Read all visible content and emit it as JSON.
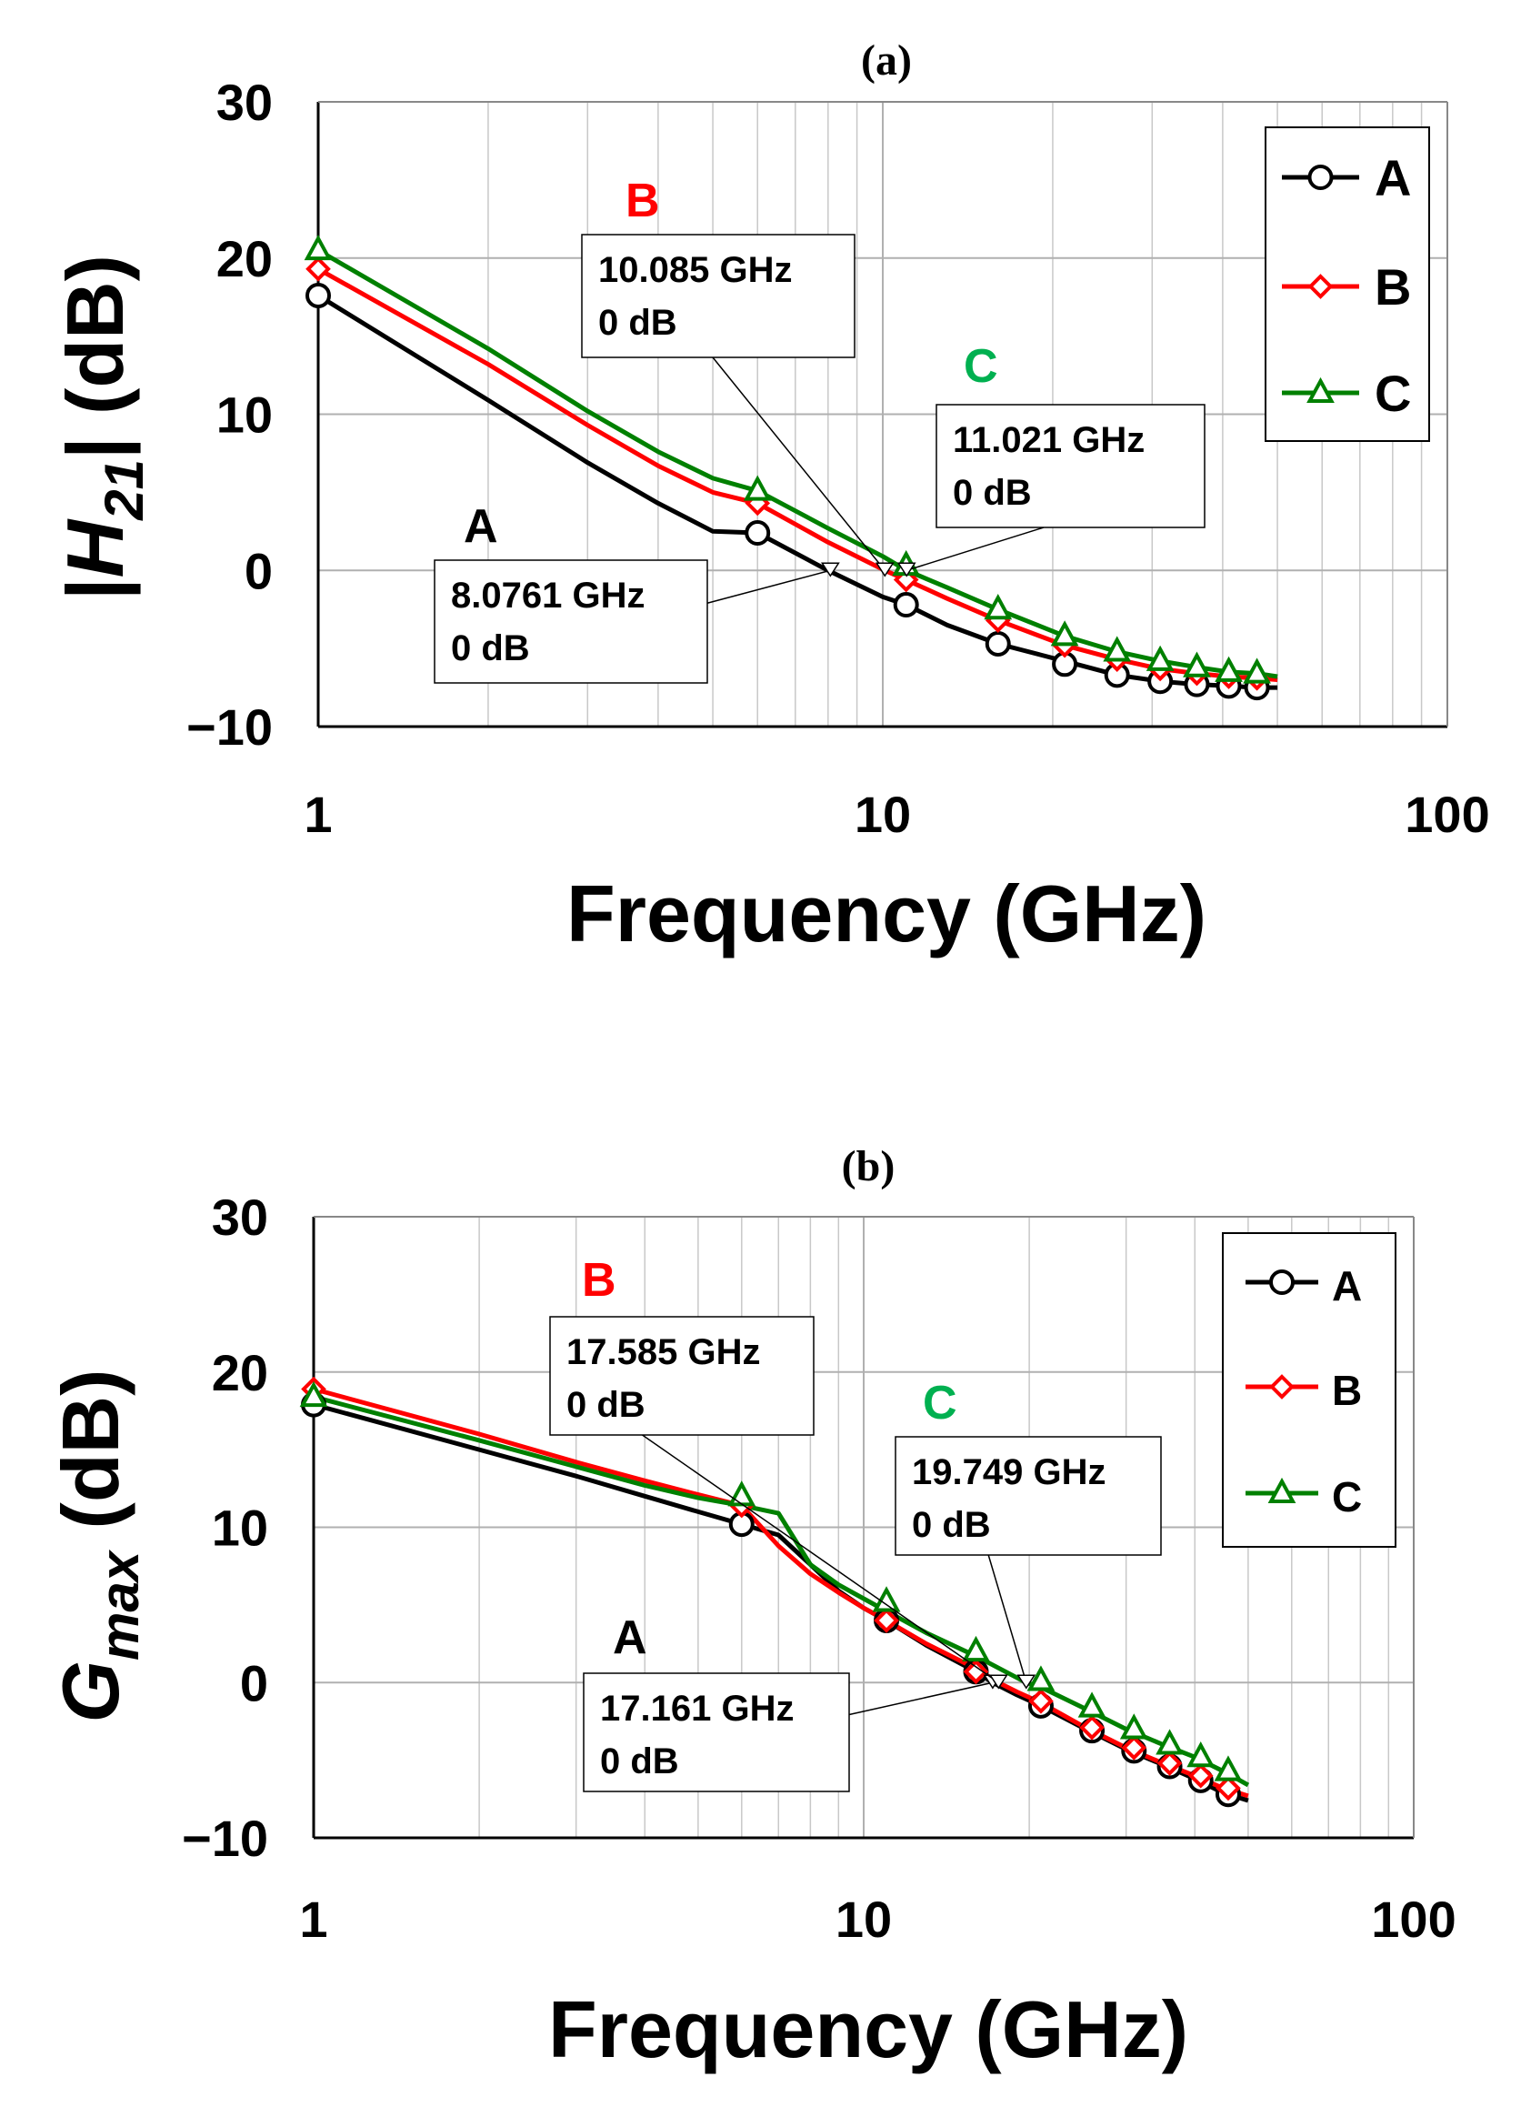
{
  "chart_data": [
    {
      "type": "line",
      "panel_title": "(a)",
      "xlabel": "Frequency (GHz)",
      "ylabel": {
        "prefix": "|",
        "var": "H",
        "sub": "21",
        "suffix": "| (dB)"
      },
      "xscale": "log",
      "xlim": [
        1,
        100
      ],
      "ylim": [
        -10,
        30
      ],
      "xticks": [
        1,
        10,
        100
      ],
      "xtick_labels": [
        "1",
        "10",
        "100"
      ],
      "yticks": [
        -10,
        0,
        10,
        20,
        30
      ],
      "ytick_labels": [
        "−10",
        "0",
        "10",
        "20",
        "30"
      ],
      "grid": true,
      "legend_position": "top-right",
      "series": [
        {
          "name": "A",
          "color": "#000000",
          "marker": "circle",
          "x": [
            1,
            2,
            3,
            4,
            5,
            6,
            8,
            10,
            11,
            13,
            16,
            19,
            22,
            26,
            31,
            36,
            41,
            46,
            50
          ],
          "y": [
            17.6,
            10.9,
            6.9,
            4.3,
            2.5,
            2.4,
            0.0,
            -1.7,
            -2.2,
            -3.5,
            -4.7,
            -5.4,
            -6.0,
            -6.7,
            -7.1,
            -7.3,
            -7.4,
            -7.5,
            -7.5
          ],
          "marker_x": [
            1,
            6,
            11,
            16,
            21,
            26,
            31,
            36,
            41,
            46
          ],
          "marker_y": [
            17.6,
            2.4,
            -2.2,
            -4.7,
            -6.0,
            -6.7,
            -7.1,
            -7.3,
            -7.4,
            -7.5
          ]
        },
        {
          "name": "B",
          "color": "#ff0000",
          "marker": "diamond",
          "x": [
            1,
            2,
            3,
            4,
            5,
            6,
            8,
            10.085,
            11,
            13,
            16,
            21,
            26,
            31,
            36,
            41,
            46,
            50
          ],
          "y": [
            19.3,
            13.2,
            9.3,
            6.7,
            5.0,
            4.3,
            1.8,
            0.0,
            -0.6,
            -1.8,
            -3.2,
            -4.8,
            -5.7,
            -6.3,
            -6.6,
            -6.8,
            -6.9,
            -7.0
          ],
          "marker_x": [
            1,
            6,
            11,
            16,
            21,
            26,
            31,
            36,
            41,
            46
          ],
          "marker_y": [
            19.3,
            4.3,
            -0.6,
            -3.2,
            -4.8,
            -5.7,
            -6.3,
            -6.6,
            -6.8,
            -6.9
          ]
        },
        {
          "name": "C",
          "color": "#008000",
          "marker": "triangle",
          "x": [
            1,
            2,
            3,
            4,
            5,
            6,
            8,
            10,
            11.021,
            13,
            16,
            21,
            26,
            31,
            36,
            41,
            46,
            50
          ],
          "y": [
            20.5,
            14.2,
            10.2,
            7.6,
            5.9,
            5.1,
            2.7,
            0.9,
            0.0,
            -1.1,
            -2.5,
            -4.2,
            -5.2,
            -5.8,
            -6.2,
            -6.5,
            -6.6,
            -6.8
          ],
          "marker_x": [
            1,
            6,
            11,
            16,
            21,
            26,
            31,
            36,
            41,
            46
          ],
          "marker_y": [
            20.5,
            5.1,
            0.3,
            -2.5,
            -4.2,
            -5.2,
            -5.8,
            -6.2,
            -6.5,
            -6.6
          ]
        }
      ],
      "annotations": [
        {
          "series": "A",
          "color": "#000000",
          "line1": "8.0761 GHz",
          "line2": "0 dB",
          "x": 8.0761,
          "y": 0
        },
        {
          "series": "B",
          "color": "#ff0000",
          "line1": "10.085 GHz",
          "line2": "0 dB",
          "x": 10.085,
          "y": 0
        },
        {
          "series": "C",
          "color": "#00b050",
          "line1": "11.021 GHz",
          "line2": "0 dB",
          "x": 11.021,
          "y": 0
        }
      ]
    },
    {
      "type": "line",
      "panel_title": "(b)",
      "xlabel": "Frequency (GHz)",
      "ylabel": {
        "prefix": "",
        "var": "G",
        "sub": "max",
        "suffix": " (dB)"
      },
      "xscale": "log",
      "xlim": [
        1,
        100
      ],
      "ylim": [
        -10,
        30
      ],
      "xticks": [
        1,
        10,
        100
      ],
      "xtick_labels": [
        "1",
        "10",
        "100"
      ],
      "yticks": [
        -10,
        0,
        10,
        20,
        30
      ],
      "ytick_labels": [
        "−10",
        "0",
        "10",
        "20",
        "30"
      ],
      "grid": true,
      "legend_position": "top-right",
      "series": [
        {
          "name": "A",
          "color": "#000000",
          "marker": "circle",
          "x": [
            1,
            2,
            3,
            4,
            5,
            6,
            7,
            8,
            9,
            10,
            11,
            13,
            16,
            17.161,
            19,
            21,
            25,
            30,
            35,
            40,
            45,
            50
          ],
          "y": [
            17.9,
            15.0,
            13.3,
            12.0,
            11.0,
            10.2,
            9.5,
            7.6,
            5.9,
            4.8,
            4.0,
            2.4,
            0.7,
            0.0,
            -0.8,
            -1.5,
            -2.9,
            -4.3,
            -5.3,
            -6.2,
            -7.1,
            -7.6
          ],
          "marker_x": [
            1,
            6,
            11,
            16,
            21,
            26,
            31,
            36,
            41,
            46
          ],
          "marker_y": [
            17.9,
            10.2,
            4.0,
            0.7,
            -1.5,
            -3.1,
            -4.4,
            -5.4,
            -6.3,
            -7.2
          ]
        },
        {
          "name": "B",
          "color": "#ff0000",
          "marker": "diamond",
          "x": [
            1,
            2,
            3,
            4,
            5,
            6,
            7,
            8,
            9,
            10,
            11,
            13,
            16,
            17.585,
            19,
            21,
            25,
            30,
            35,
            40,
            45,
            50
          ],
          "y": [
            18.9,
            16.0,
            14.2,
            13.0,
            12.1,
            11.4,
            8.8,
            7.0,
            5.8,
            4.8,
            4.0,
            2.5,
            0.9,
            0.0,
            -0.6,
            -1.3,
            -2.8,
            -4.2,
            -5.2,
            -6.0,
            -6.8,
            -7.3
          ],
          "marker_x": [
            1,
            6,
            11,
            16,
            21,
            26,
            31,
            36,
            41,
            46
          ],
          "marker_y": [
            18.9,
            11.4,
            4.0,
            0.7,
            -1.2,
            -2.9,
            -4.2,
            -5.2,
            -6.0,
            -6.8
          ]
        },
        {
          "name": "C",
          "color": "#008000",
          "marker": "triangle",
          "x": [
            1,
            2,
            3,
            4,
            5,
            6,
            7,
            8,
            9,
            10,
            11,
            13,
            16,
            19.749,
            21,
            25,
            30,
            35,
            40,
            45,
            50
          ],
          "y": [
            18.4,
            15.6,
            13.9,
            12.7,
            11.9,
            11.4,
            10.9,
            7.6,
            6.3,
            5.4,
            4.6,
            3.2,
            1.7,
            0.0,
            -0.3,
            -1.6,
            -3.0,
            -4.0,
            -4.8,
            -5.7,
            -6.6
          ],
          "marker_x": [
            1,
            6,
            11,
            16,
            21,
            26,
            31,
            36,
            41,
            46
          ],
          "marker_y": [
            18.4,
            12.0,
            5.2,
            2.0,
            0.1,
            -1.6,
            -3.0,
            -4.0,
            -4.8,
            -5.7
          ]
        }
      ],
      "annotations": [
        {
          "series": "A",
          "color": "#000000",
          "line1": "17.161 GHz",
          "line2": "0 dB",
          "x": 17.161,
          "y": 0
        },
        {
          "series": "B",
          "color": "#ff0000",
          "line1": "17.585 GHz",
          "line2": "0 dB",
          "x": 17.585,
          "y": 0
        },
        {
          "series": "C",
          "color": "#00b050",
          "line1": "19.749 GHz",
          "line2": "0 dB",
          "x": 19.749,
          "y": 0
        }
      ]
    }
  ]
}
